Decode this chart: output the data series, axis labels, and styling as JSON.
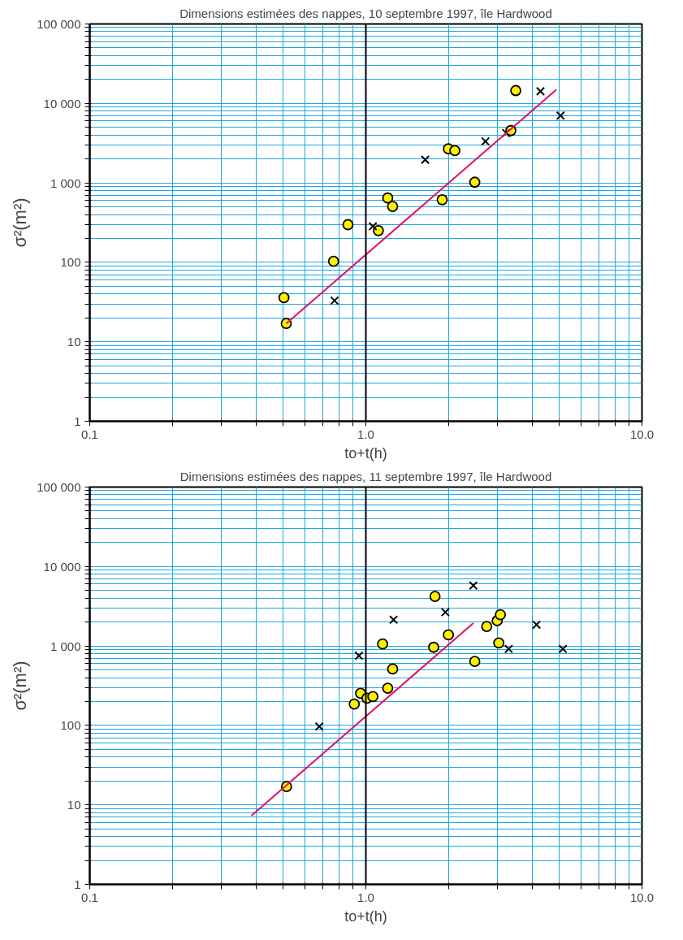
{
  "chart_data": [
    {
      "type": "scatter",
      "title": "Dimensions estimées des nappes, 10 septembre 1997, île Hardwood",
      "xlabel": "to+t(h)",
      "ylabel": "σ²(m²)",
      "log": "xy",
      "grid": true,
      "xlim": [
        0.1,
        10
      ],
      "ylim": [
        1,
        100000
      ],
      "xticks": [
        {
          "value": 0.1,
          "label": "0.1"
        },
        {
          "value": 0.2,
          "label": null
        },
        {
          "value": 0.3,
          "label": null
        },
        {
          "value": 0.4,
          "label": null
        },
        {
          "value": 0.5,
          "label": null
        },
        {
          "value": 0.6,
          "label": null
        },
        {
          "value": 0.7,
          "label": null
        },
        {
          "value": 0.8,
          "label": null
        },
        {
          "value": 0.9,
          "label": null
        },
        {
          "value": 1,
          "label": "1.0"
        },
        {
          "value": 2,
          "label": null
        },
        {
          "value": 3,
          "label": null
        },
        {
          "value": 4,
          "label": null
        },
        {
          "value": 5,
          "label": null
        },
        {
          "value": 6,
          "label": null
        },
        {
          "value": 7,
          "label": null
        },
        {
          "value": 8,
          "label": null
        },
        {
          "value": 9,
          "label": null
        },
        {
          "value": 10,
          "label": "10.0"
        }
      ],
      "yticks": [
        1,
        {
          "value": 2,
          "label": null
        },
        {
          "value": 3,
          "label": null
        },
        {
          "value": 4,
          "label": null
        },
        {
          "value": 5,
          "label": null
        },
        {
          "value": 6,
          "label": null
        },
        {
          "value": 7,
          "label": null
        },
        {
          "value": 8,
          "label": null
        },
        {
          "value": 9,
          "label": null
        },
        10,
        {
          "value": 20,
          "label": null
        },
        {
          "value": 30,
          "label": null
        },
        {
          "value": 40,
          "label": null
        },
        {
          "value": 50,
          "label": null
        },
        {
          "value": 60,
          "label": null
        },
        {
          "value": 70,
          "label": null
        },
        {
          "value": 80,
          "label": null
        },
        {
          "value": 90,
          "label": null
        },
        100,
        {
          "value": 200,
          "label": null
        },
        {
          "value": 300,
          "label": null
        },
        {
          "value": 400,
          "label": null
        },
        {
          "value": 500,
          "label": null
        },
        {
          "value": 600,
          "label": null
        },
        {
          "value": 700,
          "label": null
        },
        {
          "value": 800,
          "label": null
        },
        {
          "value": 900,
          "label": null
        },
        {
          "value": 1000,
          "label": "1 000"
        },
        {
          "value": 2000,
          "label": null
        },
        {
          "value": 3000,
          "label": null
        },
        {
          "value": 4000,
          "label": null
        },
        {
          "value": 5000,
          "label": null
        },
        {
          "value": 6000,
          "label": null
        },
        {
          "value": 7000,
          "label": null
        },
        {
          "value": 8000,
          "label": null
        },
        {
          "value": 9000,
          "label": null
        },
        {
          "value": 10000,
          "label": "10 000"
        },
        {
          "value": 20000,
          "label": null
        },
        {
          "value": 30000,
          "label": null
        },
        {
          "value": 40000,
          "label": null
        },
        {
          "value": 50000,
          "label": null
        },
        {
          "value": 60000,
          "label": null
        },
        {
          "value": 70000,
          "label": null
        },
        {
          "value": 80000,
          "label": null
        },
        {
          "value": 90000,
          "label": null
        },
        {
          "value": 100000,
          "label": "100 000"
        }
      ],
      "ref_lines": [
        {
          "axis": "x",
          "value": 1,
          "color": "#000000"
        }
      ],
      "series": [
        {
          "marker": "circle",
          "color": "#ffee00",
          "x": [
            0.515,
            0.505,
            0.764,
            0.861,
            1.2,
            1.25,
            1.11,
            1.89,
            1.99,
            2.1,
            2.48,
            3.35,
            3.49
          ],
          "values": [
            17,
            36,
            103,
            298,
            645,
            506,
            251,
            614,
            2680,
            2550,
            1020,
            4550,
            14500
          ]
        },
        {
          "marker": "cross",
          "color": "#000000",
          "x": [
            0.77,
            1.06,
            1.64,
            2.71,
            3.22,
            4.29,
            5.07
          ],
          "values": [
            33,
            284,
            1955,
            3330,
            4240,
            14200,
            7030
          ]
        },
        {
          "type": "line",
          "color": "#e0106a",
          "x": [
            0.515,
            4.9
          ],
          "values": [
            17,
            14900
          ]
        }
      ]
    },
    {
      "type": "scatter",
      "title": "Dimensions estimées des nappes, 11 septembre 1997, île Hardwood",
      "xlabel": "to+t(h)",
      "ylabel": "σ²(m²)",
      "log": "xy",
      "grid": true,
      "xlim": [
        0.1,
        10
      ],
      "ylim": [
        1,
        100000
      ],
      "xticks": [
        {
          "value": 0.1,
          "label": "0.1"
        },
        {
          "value": 0.2,
          "label": null
        },
        {
          "value": 0.3,
          "label": null
        },
        {
          "value": 0.4,
          "label": null
        },
        {
          "value": 0.5,
          "label": null
        },
        {
          "value": 0.6,
          "label": null
        },
        {
          "value": 0.7,
          "label": null
        },
        {
          "value": 0.8,
          "label": null
        },
        {
          "value": 0.9,
          "label": null
        },
        {
          "value": 1,
          "label": "1.0"
        },
        {
          "value": 2,
          "label": null
        },
        {
          "value": 3,
          "label": null
        },
        {
          "value": 4,
          "label": null
        },
        {
          "value": 5,
          "label": null
        },
        {
          "value": 6,
          "label": null
        },
        {
          "value": 7,
          "label": null
        },
        {
          "value": 8,
          "label": null
        },
        {
          "value": 9,
          "label": null
        },
        {
          "value": 10,
          "label": "10.0"
        }
      ],
      "yticks": [
        1,
        {
          "value": 2,
          "label": null
        },
        {
          "value": 3,
          "label": null
        },
        {
          "value": 4,
          "label": null
        },
        {
          "value": 5,
          "label": null
        },
        {
          "value": 6,
          "label": null
        },
        {
          "value": 7,
          "label": null
        },
        {
          "value": 8,
          "label": null
        },
        {
          "value": 9,
          "label": null
        },
        10,
        {
          "value": 20,
          "label": null
        },
        {
          "value": 30,
          "label": null
        },
        {
          "value": 40,
          "label": null
        },
        {
          "value": 50,
          "label": null
        },
        {
          "value": 60,
          "label": null
        },
        {
          "value": 70,
          "label": null
        },
        {
          "value": 80,
          "label": null
        },
        {
          "value": 90,
          "label": null
        },
        100,
        {
          "value": 200,
          "label": null
        },
        {
          "value": 300,
          "label": null
        },
        {
          "value": 400,
          "label": null
        },
        {
          "value": 500,
          "label": null
        },
        {
          "value": 600,
          "label": null
        },
        {
          "value": 700,
          "label": null
        },
        {
          "value": 800,
          "label": null
        },
        {
          "value": 900,
          "label": null
        },
        {
          "value": 1000,
          "label": "1 000"
        },
        {
          "value": 2000,
          "label": null
        },
        {
          "value": 3000,
          "label": null
        },
        {
          "value": 4000,
          "label": null
        },
        {
          "value": 5000,
          "label": null
        },
        {
          "value": 6000,
          "label": null
        },
        {
          "value": 7000,
          "label": null
        },
        {
          "value": 8000,
          "label": null
        },
        {
          "value": 9000,
          "label": null
        },
        {
          "value": 10000,
          "label": "10 000"
        },
        {
          "value": 20000,
          "label": null
        },
        {
          "value": 30000,
          "label": null
        },
        {
          "value": 40000,
          "label": null
        },
        {
          "value": 50000,
          "label": null
        },
        {
          "value": 60000,
          "label": null
        },
        {
          "value": 70000,
          "label": null
        },
        {
          "value": 80000,
          "label": null
        },
        {
          "value": 90000,
          "label": null
        },
        {
          "value": 100000,
          "label": "100 000"
        }
      ],
      "ref_lines": [
        {
          "axis": "x",
          "value": 1,
          "color": "#000000"
        }
      ],
      "series": [
        {
          "marker": "circle",
          "color": "#ffee00",
          "x": [
            0.516,
            0.908,
            0.957,
            1.01,
            1.06,
            1.2,
            1.15,
            1.25,
            1.78,
            1.76,
            1.99,
            2.48,
            2.74,
            2.99,
            3.07,
            3.03
          ],
          "values": [
            17,
            186,
            254,
            220,
            231,
            294,
            1060,
            513,
            4210,
            962,
            1380,
            638,
            1760,
            2080,
            2470,
            1090
          ]
        },
        {
          "marker": "cross",
          "color": "#000000",
          "x": [
            0.678,
            0.944,
            1.26,
            1.94,
            2.45,
            3.29,
            4.15,
            5.17
          ],
          "values": [
            97,
            755,
            2140,
            2660,
            5760,
            917,
            1850,
            917
          ]
        },
        {
          "type": "line",
          "color": "#e0106a",
          "x": [
            0.385,
            2.45
          ],
          "values": [
            7.3,
            1940
          ]
        }
      ]
    }
  ]
}
